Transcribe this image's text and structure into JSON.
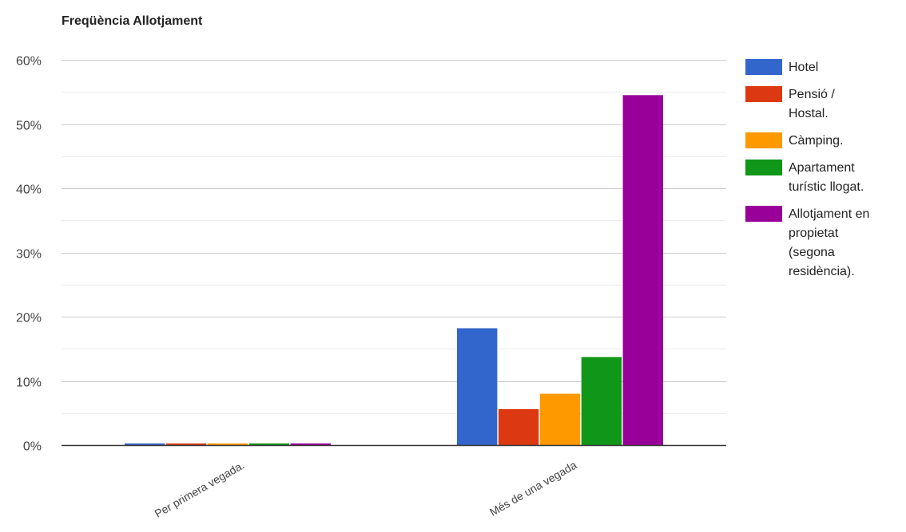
{
  "chart_data": {
    "type": "bar",
    "title": "Freqüència Allotjament",
    "xlabel": "",
    "ylabel": "",
    "categories": [
      "Per primera vegada.",
      "Més de una vegada"
    ],
    "ylim": [
      0,
      60
    ],
    "yticks": [
      0,
      10,
      20,
      30,
      40,
      50,
      60
    ],
    "ytick_labels": [
      "0%",
      "10%",
      "20%",
      "30%",
      "40%",
      "50%",
      "60%"
    ],
    "grid": true,
    "legend_position": "right",
    "series": [
      {
        "name": "Hotel",
        "color": "#3366cc",
        "values": [
          0,
          18.2
        ]
      },
      {
        "name": "Pensió / Hostal.",
        "color": "#dc3912",
        "values": [
          0,
          5.6
        ]
      },
      {
        "name": "Càmping.",
        "color": "#ff9900",
        "values": [
          0,
          8.0
        ]
      },
      {
        "name": "Apartament turístic llogat.",
        "color": "#109618",
        "values": [
          0,
          13.7
        ]
      },
      {
        "name": "Allotjament en propietat (segona residència).",
        "color": "#990099",
        "values": [
          0,
          54.5
        ]
      }
    ]
  }
}
